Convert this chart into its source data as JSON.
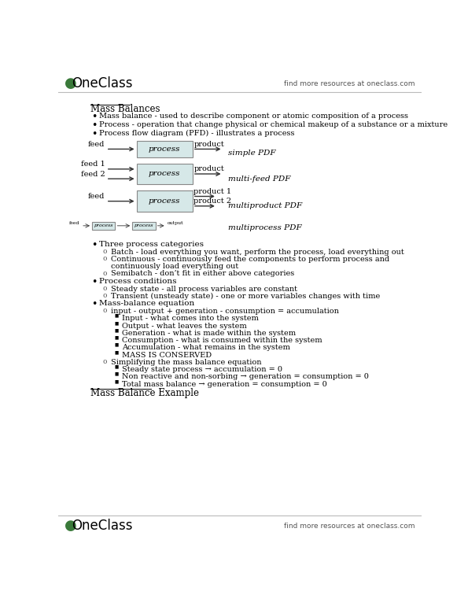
{
  "bg_color": "#ffffff",
  "text_color": "#000000",
  "box_fill": "#d6e8e8",
  "box_edge": "#888888",
  "logo_green": "#3a7a3a",
  "title_text": "Mass Balances",
  "bullets_l1": [
    "Mass balance - used to describe component or atomic composition of a process",
    "Process - operation that change physical or chemical makeup of a substance or a mixture",
    "Process flow diagram (PFD) - illustrates a process"
  ],
  "diagram_labels": {
    "simple": "simple PDF",
    "multi_feed": "multi-feed PDF",
    "multiproduct": "multiproduct PDF",
    "multiprocess": "multiprocess PDF"
  },
  "three_process_header": "Three process categories",
  "three_process_items": [
    "Batch - load everything you want, perform the process, load everything out",
    "Continuous - continuously feed the components to perform process and",
    "continuously load everything out",
    "Semibatch - don’t fit in either above categories"
  ],
  "process_conditions_header": "Process conditions",
  "process_conditions_items": [
    "Steady state - all process variables are constant",
    "Transient (unsteady state) - one or more variables changes with time"
  ],
  "mass_balance_eq_header": "Mass-balance equation",
  "mass_balance_eq_sub": "input - output + generation - consumption = accumulation",
  "mass_balance_eq_items": [
    "Input - what comes into the system",
    "Output - what leaves the system",
    "Generation - what is made within the system",
    "Consumption - what is consumed within the system",
    "Accumulation - what remains in the system",
    "MASS IS CONSERVED"
  ],
  "simplify_header": "Simplifying the mass balance equation",
  "simplify_items": [
    "Steady state process → accumulation = 0",
    "Non reactive and non-sorbing → generation = consumption = 0",
    "Total mass balance → generation = consumption = 0"
  ],
  "footer_header": "Mass Balance Example",
  "find_text": "find more resources at oneclass.com"
}
